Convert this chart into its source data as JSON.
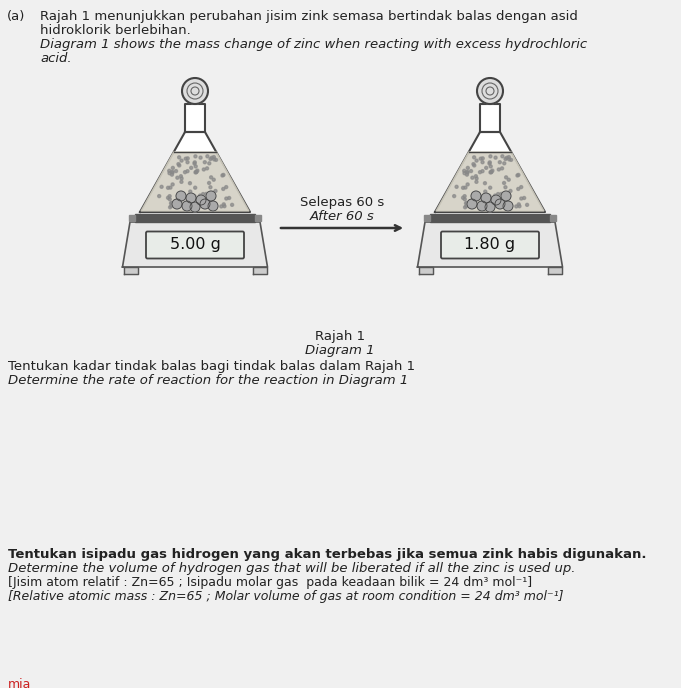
{
  "background_color": "#f0f0f0",
  "title_a": "(a)",
  "header_line1": "Rajah 1 menunjukkan perubahan jisim zink semasa bertindak balas dengan asid",
  "header_line2": "hidroklorik berlebihan.",
  "header_line3": "Diagram 1 shows the mass change of zinc when reacting with excess hydrochloric",
  "header_line4": "acid.",
  "selepas_text": "Selepas 60 s",
  "after_text": "After 60 s",
  "scale1_reading": "5.00 g",
  "scale2_reading": "1.80 g",
  "caption1": "Rajah 1",
  "caption2": "Diagram 1",
  "q1_line1": "Tentukan kadar tindak balas bagi tindak balas dalam Rajah 1",
  "q1_line2": "Determine the rate of reaction for the reaction in Diagram 1",
  "q2_line1": "Tentukan isipadu gas hidrogen yang akan terbebas jika semua zink habis digunakan.",
  "q2_line2": "Determine the volume of hydrogen gas that will be liberated if all the zinc is used up.",
  "bracket1": "[Jisim atom relatif : Zn=65 ; Isipadu molar gas  pada keadaan bilik = 24 dm³ mol⁻¹]",
  "bracket2": "[Relative atomic mass : Zn=65 ; Molar volume of gas at room condition = 24 dm³ mol⁻¹]",
  "footer": "mia",
  "text_color": "#222222",
  "flask_color": "#ffffff",
  "flask_outline": "#444444",
  "liquid_color": "#d0cdc0",
  "zinc_color": "#aaaaaa",
  "scale_body": "#e8e8e8",
  "scale_border": "#555555",
  "scale_platform_dark": "#555555",
  "lcd_bg": "#e8ece8",
  "lcd_border": "#444444",
  "stopper_color": "#dddddd",
  "footer_color": "#cc2222"
}
